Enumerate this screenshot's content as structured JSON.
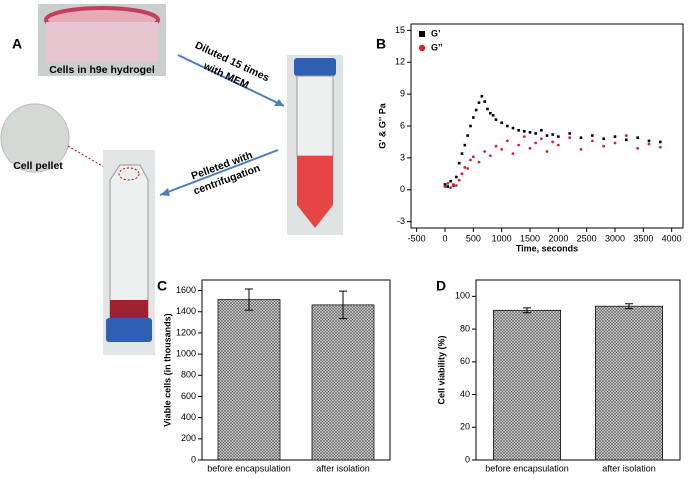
{
  "panel_a": {
    "panel": "A",
    "dish_label": "Cells in h9e hydrogel",
    "dilution_label": [
      "Diluted 15 times",
      "with MEM"
    ],
    "pellet_step_label": [
      "Pelleted with",
      "centrifugation"
    ],
    "pellet_label": "Cell pellet"
  },
  "chart_data": [
    {
      "type": "scatter",
      "panel": "B",
      "x_label": "Time, seconds",
      "y_label": "G' & G'' Pa",
      "xlim": [
        -600,
        4200
      ],
      "ylim": [
        -3.6,
        15.6
      ],
      "xticks": [
        -500,
        0,
        500,
        1000,
        1500,
        2000,
        2500,
        3000,
        3500,
        4000
      ],
      "yticks": [
        -3,
        0,
        3,
        6,
        9,
        12,
        15
      ],
      "legend": "upper-left",
      "series": [
        {
          "name": "G’",
          "color": "#000000",
          "marker": "square",
          "x": [
            0,
            50,
            100,
            150,
            200,
            250,
            300,
            350,
            400,
            450,
            500,
            550,
            600,
            650,
            700,
            750,
            800,
            850,
            900,
            1000,
            1100,
            1200,
            1300,
            1400,
            1500,
            1600,
            1700,
            1800,
            1900,
            2000,
            2200,
            2400,
            2600,
            2800,
            3000,
            3200,
            3400,
            3600,
            3800
          ],
          "values": [
            0.5,
            0.3,
            0.8,
            0.4,
            1.2,
            2.5,
            3.4,
            4.2,
            5.1,
            6.0,
            6.8,
            7.5,
            8.2,
            8.8,
            8.3,
            7.6,
            7.2,
            7.0,
            6.6,
            6.3,
            6.0,
            5.8,
            5.6,
            5.5,
            5.4,
            5.3,
            5.6,
            5.1,
            5.2,
            5.0,
            5.3,
            4.9,
            5.1,
            4.8,
            5.0,
            4.7,
            4.9,
            4.6,
            4.5
          ]
        },
        {
          "name": "G’’",
          "color": "#d62728",
          "marker": "circle",
          "x": [
            0,
            50,
            100,
            150,
            200,
            250,
            300,
            350,
            400,
            450,
            500,
            600,
            700,
            800,
            900,
            1000,
            1100,
            1200,
            1300,
            1400,
            1500,
            1600,
            1700,
            1800,
            1900,
            2000,
            2200,
            2400,
            2600,
            2800,
            3000,
            3200,
            3400,
            3600,
            3800
          ],
          "values": [
            0.3,
            0.6,
            0.2,
            0.5,
            0.4,
            0.9,
            1.5,
            2.1,
            2.0,
            2.8,
            3.1,
            2.6,
            3.6,
            3.2,
            4.1,
            3.8,
            4.6,
            3.4,
            4.2,
            5.0,
            3.9,
            4.4,
            4.8,
            3.6,
            4.5,
            4.2,
            4.9,
            3.8,
            4.6,
            4.1,
            4.4,
            5.1,
            3.9,
            4.3,
            4.0
          ]
        }
      ]
    },
    {
      "type": "bar",
      "panel": "C",
      "y_label": "Viable cells (in thousands)",
      "categories": [
        "before encapsulation",
        "after isolation"
      ],
      "values": [
        1515,
        1465
      ],
      "errors": [
        100,
        130
      ],
      "ylim": [
        0,
        1700
      ],
      "yticks": [
        0,
        200,
        400,
        600,
        800,
        1000,
        1200,
        1400,
        1600
      ]
    },
    {
      "type": "bar",
      "panel": "D",
      "y_label": "Cell viability (%)",
      "categories": [
        "before encapsulation",
        "after isolation"
      ],
      "values": [
        91.5,
        94
      ],
      "errors": [
        1.5,
        1.5
      ],
      "ylim": [
        0,
        110
      ],
      "yticks": [
        0,
        20,
        40,
        60,
        80,
        100
      ]
    }
  ]
}
